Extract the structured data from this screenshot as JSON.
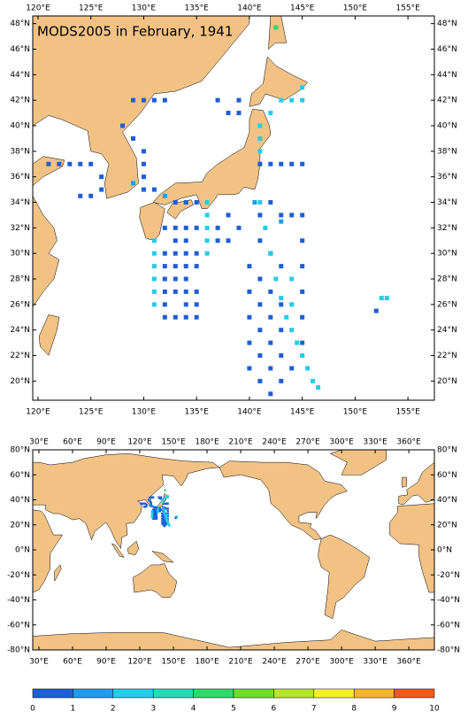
{
  "chart_data": [
    {
      "type": "map",
      "title": "MODS2005 in February, 1941",
      "xlim": [
        119.5,
        157.5
      ],
      "ylim": [
        18.5,
        48.6
      ],
      "xticks": [
        {
          "value": 120,
          "label": "120°E"
        },
        {
          "value": 125,
          "label": "125°E"
        },
        {
          "value": 130,
          "label": "130°E"
        },
        {
          "value": 135,
          "label": "135°E"
        },
        {
          "value": 140,
          "label": "140°E"
        },
        {
          "value": 145,
          "label": "145°E"
        },
        {
          "value": 150,
          "label": "150°E"
        },
        {
          "value": 155,
          "label": "155°E"
        }
      ],
      "yticks": [
        {
          "value": 20,
          "label": "20°N"
        },
        {
          "value": 22,
          "label": "22°N"
        },
        {
          "value": 24,
          "label": "24°N"
        },
        {
          "value": 26,
          "label": "26°N"
        },
        {
          "value": 28,
          "label": "28°N"
        },
        {
          "value": 30,
          "label": "30°N"
        },
        {
          "value": 32,
          "label": "32°N"
        },
        {
          "value": 34,
          "label": "34°N"
        },
        {
          "value": 36,
          "label": "36°N"
        },
        {
          "value": 38,
          "label": "38°N"
        },
        {
          "value": 40,
          "label": "40°N"
        },
        {
          "value": 42,
          "label": "42°N"
        },
        {
          "value": 44,
          "label": "44°N"
        },
        {
          "value": 46,
          "label": "46°N"
        },
        {
          "value": 48,
          "label": "48°N"
        }
      ],
      "points": [
        [
          132,
          25,
          1
        ],
        [
          133,
          25,
          1
        ],
        [
          134,
          25,
          1
        ],
        [
          135,
          25,
          1
        ],
        [
          132,
          26,
          1
        ],
        [
          134,
          26,
          1
        ],
        [
          135,
          26,
          1
        ],
        [
          132,
          27,
          1
        ],
        [
          133,
          27,
          1
        ],
        [
          134,
          27,
          1
        ],
        [
          135,
          27,
          1
        ],
        [
          132,
          28,
          1
        ],
        [
          133,
          28,
          1
        ],
        [
          134,
          28,
          1
        ],
        [
          132,
          29,
          1
        ],
        [
          133,
          29,
          1
        ],
        [
          134,
          29,
          1
        ],
        [
          135,
          29,
          1
        ],
        [
          132,
          30,
          1
        ],
        [
          133,
          30,
          1
        ],
        [
          134,
          30,
          1
        ],
        [
          135,
          30,
          1
        ],
        [
          133,
          31,
          1
        ],
        [
          134,
          31,
          1
        ],
        [
          132,
          32,
          1
        ],
        [
          133,
          32,
          1
        ],
        [
          134,
          32,
          1
        ],
        [
          135,
          32,
          1
        ],
        [
          137,
          31,
          1
        ],
        [
          138,
          31,
          1
        ],
        [
          137,
          32,
          1
        ],
        [
          138,
          33,
          1
        ],
        [
          139,
          32,
          1
        ],
        [
          131,
          26,
          3
        ],
        [
          131,
          27,
          3
        ],
        [
          131,
          28,
          3
        ],
        [
          131,
          29,
          3
        ],
        [
          131,
          30,
          3
        ],
        [
          131,
          31,
          3
        ],
        [
          136,
          30,
          3
        ],
        [
          136,
          31,
          3
        ],
        [
          136,
          32,
          3
        ],
        [
          136,
          33,
          3
        ],
        [
          136,
          34,
          3
        ],
        [
          140,
          29,
          1
        ],
        [
          140,
          27,
          1
        ],
        [
          140,
          25,
          1
        ],
        [
          140,
          23,
          1
        ],
        [
          140,
          21,
          1
        ],
        [
          141,
          31,
          1
        ],
        [
          141,
          28,
          1
        ],
        [
          141,
          26,
          1
        ],
        [
          141,
          24,
          1
        ],
        [
          141,
          22,
          1
        ],
        [
          141,
          20,
          1
        ],
        [
          142,
          30,
          1
        ],
        [
          142,
          27,
          1
        ],
        [
          142,
          25,
          1
        ],
        [
          142,
          23,
          1
        ],
        [
          142,
          21,
          1
        ],
        [
          142,
          19,
          1
        ],
        [
          143,
          29,
          1
        ],
        [
          143,
          26,
          1
        ],
        [
          143,
          24,
          1
        ],
        [
          143,
          22,
          1
        ],
        [
          143,
          20,
          1
        ],
        [
          145,
          33,
          1
        ],
        [
          145,
          31,
          1
        ],
        [
          145,
          29,
          1
        ],
        [
          145,
          27,
          1
        ],
        [
          145,
          25,
          1
        ],
        [
          145,
          23,
          1
        ],
        [
          144,
          21,
          1
        ],
        [
          144,
          33,
          1
        ],
        [
          143,
          33,
          1
        ],
        [
          142,
          34,
          1
        ],
        [
          141,
          33,
          1
        ],
        [
          141,
          34,
          3
        ],
        [
          141.5,
          32,
          3
        ],
        [
          142,
          30,
          3
        ],
        [
          142.5,
          28,
          3
        ],
        [
          143,
          26.5,
          3
        ],
        [
          143.5,
          25,
          3
        ],
        [
          144,
          24,
          3
        ],
        [
          144.5,
          23,
          3
        ],
        [
          145,
          22,
          3
        ],
        [
          145.5,
          21,
          3
        ],
        [
          146,
          20,
          3
        ],
        [
          146.5,
          19.5,
          3
        ],
        [
          144,
          28,
          3
        ],
        [
          144,
          26,
          3
        ],
        [
          140.5,
          34,
          2
        ],
        [
          143,
          32.5,
          2
        ],
        [
          141,
          37,
          1
        ],
        [
          142,
          37,
          1
        ],
        [
          143,
          37,
          1
        ],
        [
          144,
          37,
          1
        ],
        [
          145,
          37,
          1
        ],
        [
          141,
          38,
          3
        ],
        [
          141,
          39,
          3
        ],
        [
          141,
          40,
          3
        ],
        [
          142,
          41,
          3
        ],
        [
          143,
          42,
          3
        ],
        [
          144,
          42,
          3
        ],
        [
          145,
          43,
          3
        ],
        [
          145,
          42,
          3
        ],
        [
          142.5,
          47.7,
          5
        ],
        [
          137,
          42,
          1
        ],
        [
          138,
          41,
          1
        ],
        [
          139,
          42,
          1
        ],
        [
          139,
          41,
          1
        ],
        [
          121,
          37,
          1
        ],
        [
          122,
          37,
          1
        ],
        [
          123,
          37,
          1
        ],
        [
          124,
          37,
          1
        ],
        [
          125,
          37,
          1
        ],
        [
          126,
          36,
          1
        ],
        [
          126,
          35,
          1
        ],
        [
          125,
          34.5,
          1
        ],
        [
          124,
          34.5,
          1
        ],
        [
          128,
          40,
          1
        ],
        [
          129,
          39,
          1
        ],
        [
          130,
          38,
          1
        ],
        [
          130,
          37,
          1
        ],
        [
          130,
          36,
          1
        ],
        [
          131,
          35,
          1
        ],
        [
          130,
          35,
          1
        ],
        [
          129,
          35.5,
          2
        ],
        [
          132,
          34.5,
          2
        ],
        [
          133,
          34,
          1
        ],
        [
          134,
          34,
          1
        ],
        [
          135,
          34,
          1
        ],
        [
          129,
          42,
          1
        ],
        [
          130,
          42,
          1
        ],
        [
          131,
          42,
          1
        ],
        [
          132,
          42,
          1
        ],
        [
          152.5,
          26.5,
          3
        ],
        [
          153,
          26.5,
          3
        ],
        [
          152,
          25.5,
          1
        ]
      ]
    },
    {
      "type": "map",
      "xlim": [
        24.5,
        382.8
      ],
      "ylim": [
        -80,
        80
      ],
      "xticks": [
        {
          "value": 30,
          "label": "30°E"
        },
        {
          "value": 60,
          "label": "60°E"
        },
        {
          "value": 90,
          "label": "90°E"
        },
        {
          "value": 120,
          "label": "120°E"
        },
        {
          "value": 150,
          "label": "150°E"
        },
        {
          "value": 180,
          "label": "180°E"
        },
        {
          "value": 210,
          "label": "210°E"
        },
        {
          "value": 240,
          "label": "240°E"
        },
        {
          "value": 270,
          "label": "270°E"
        },
        {
          "value": 300,
          "label": "300°E"
        },
        {
          "value": 330,
          "label": "330°E"
        },
        {
          "value": 360,
          "label": "360°E"
        }
      ],
      "yticks": [
        {
          "value": -80,
          "label": "-80°N"
        },
        {
          "value": -60,
          "label": "-60°N"
        },
        {
          "value": -40,
          "label": "-40°N"
        },
        {
          "value": -20,
          "label": "-20°N"
        },
        {
          "value": 0,
          "label": "0°N"
        },
        {
          "value": 20,
          "label": "20°N"
        },
        {
          "value": 40,
          "label": "40°N"
        },
        {
          "value": 60,
          "label": "60°N"
        },
        {
          "value": 80,
          "label": "80°N"
        }
      ]
    },
    {
      "type": "colorbar",
      "levels": [
        0,
        1,
        2,
        3,
        4,
        5,
        6,
        7,
        8,
        9,
        10
      ],
      "colors": [
        "#1e5ed6",
        "#1f9bf0",
        "#22cde8",
        "#25dbb4",
        "#2ed86a",
        "#6fdc2a",
        "#b8e42a",
        "#f4ef2c",
        "#f5b52a",
        "#ef5a1c"
      ]
    }
  ]
}
